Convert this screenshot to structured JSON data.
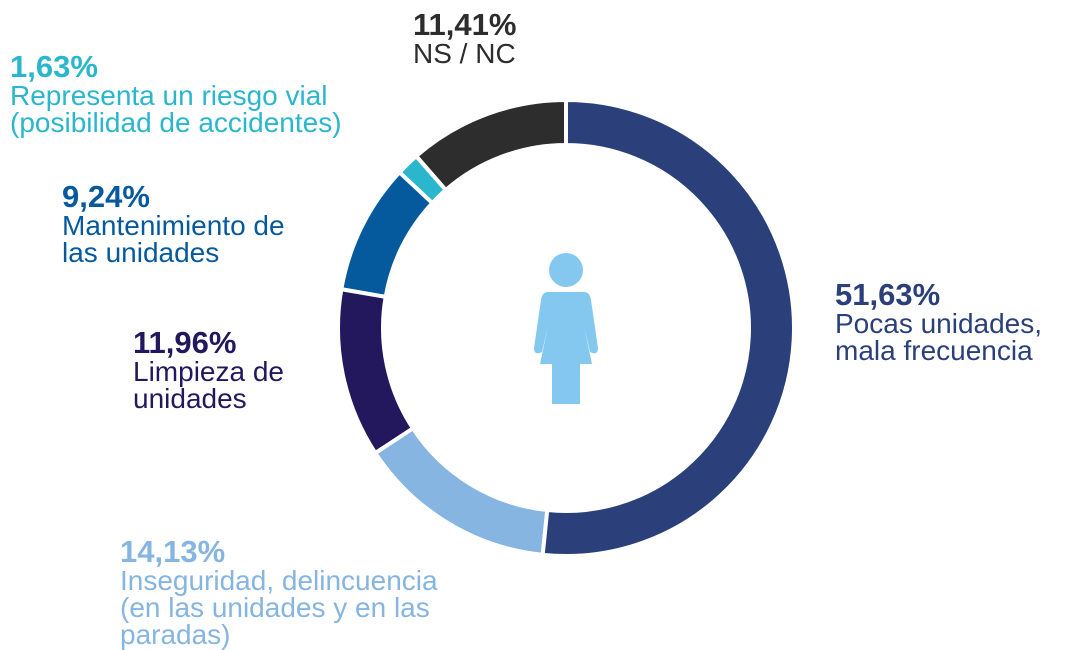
{
  "chart_data": {
    "type": "pie",
    "donut": true,
    "categories": [
      "Pocas unidades,\nmala frecuencia",
      "Inseguridad, delincuencia\n(en las unidades y en las\nparadas)",
      "Limpieza de\nunidades",
      "Mantenimiento de\nlas unidades",
      "Representa un riesgo vial\n(posibilidad de accidentes)",
      "NS / NC"
    ],
    "values": [
      51.63,
      14.13,
      11.96,
      9.24,
      1.63,
      11.41
    ],
    "value_labels": [
      "51,63%",
      "14,13%",
      "11,96%",
      "9,24%",
      "1,63%",
      "11,41%"
    ],
    "colors": [
      "#2b3f7a",
      "#85b5e0",
      "#23185e",
      "#055a9e",
      "#2ab7cd",
      "#2d2d2d"
    ]
  }
}
